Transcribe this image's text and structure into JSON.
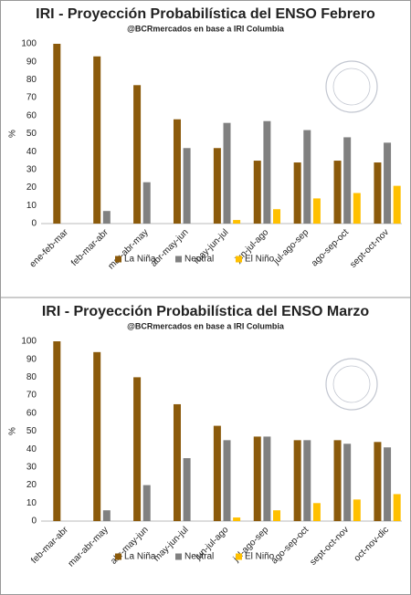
{
  "chart_data": [
    {
      "type": "bar",
      "title": "IRI - Proyección Probabilística del ENSO Febrero",
      "subtitle": "@BCRmercados en base a IRI Columbia",
      "y_label": "%",
      "categories": [
        "ene-feb-mar",
        "feb-mar-abr",
        "mar-abr-may",
        "abr-may-jun",
        "may-jun-jul",
        "jun-jul-ago",
        "jul-ago-sep",
        "ago-sep-oct",
        "sept-oct-nov"
      ],
      "series": [
        {
          "name": "La Niña",
          "color": "#8B5A0B",
          "values": [
            100,
            93,
            77,
            58,
            42,
            35,
            34,
            35,
            34
          ]
        },
        {
          "name": "Neutral",
          "color": "#808080",
          "values": [
            0,
            7,
            23,
            42,
            56,
            57,
            52,
            48,
            45
          ]
        },
        {
          "name": "El Niño",
          "color": "#FFC000",
          "values": [
            0,
            0,
            0,
            0,
            2,
            8,
            14,
            17,
            21
          ]
        }
      ],
      "ylim": [
        0,
        100
      ],
      "yticks": [
        0,
        10,
        20,
        30,
        40,
        50,
        60,
        70,
        80,
        90,
        100
      ],
      "grid": false,
      "legend": "bottom"
    },
    {
      "type": "bar",
      "title": "IRI - Proyección Probabilística del ENSO Marzo",
      "subtitle": "@BCRmercados en base a IRI Columbia",
      "y_label": "%",
      "categories": [
        "feb-mar-abr",
        "mar-abr-may",
        "abr-may-jun",
        "may-jun-jul",
        "jun-jul-ago",
        "jul-ago-sep",
        "ago-sep-oct",
        "sept-oct-nov",
        "oct-nov-dic"
      ],
      "series": [
        {
          "name": "La Niña",
          "color": "#8B5A0B",
          "values": [
            100,
            94,
            80,
            65,
            53,
            47,
            45,
            45,
            44
          ]
        },
        {
          "name": "Neutral",
          "color": "#808080",
          "values": [
            0,
            6,
            20,
            35,
            45,
            47,
            45,
            43,
            41
          ]
        },
        {
          "name": "El Niño",
          "color": "#FFC000",
          "values": [
            0,
            0,
            0,
            0,
            2,
            6,
            10,
            12,
            15
          ]
        }
      ],
      "ylim": [
        0,
        100
      ],
      "yticks": [
        0,
        10,
        20,
        30,
        40,
        50,
        60,
        70,
        80,
        90,
        100
      ],
      "grid": false,
      "legend": "bottom"
    }
  ]
}
